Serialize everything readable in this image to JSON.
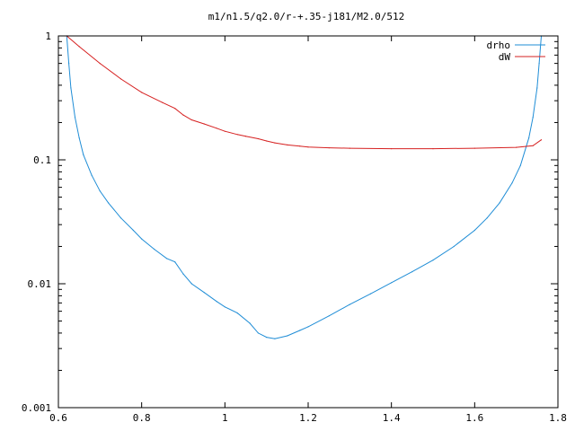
{
  "chart_data": {
    "type": "line",
    "title": "m1/n1.5/q2.0/r-+.35-j181/M2.0/512",
    "xlabel": "",
    "ylabel": "",
    "xlim": [
      0.6,
      1.8
    ],
    "ylim": [
      0.001,
      1
    ],
    "yscale": "log",
    "grid": false,
    "legend_position": "top-right",
    "x_ticks": [
      0.6,
      0.8,
      1.0,
      1.2,
      1.4,
      1.6,
      1.8
    ],
    "x_tick_labels": [
      "0.6",
      "0.8",
      "1",
      "1.2",
      "1.4",
      "1.6",
      "1.8"
    ],
    "y_ticks": [
      0.001,
      0.01,
      0.1,
      1
    ],
    "y_tick_labels": [
      "0.001",
      "0.01",
      "0.1",
      "1"
    ],
    "series": [
      {
        "name": "drho",
        "color": "#1f8dd6",
        "x": [
          0.62,
          0.625,
          0.63,
          0.64,
          0.65,
          0.66,
          0.68,
          0.7,
          0.72,
          0.75,
          0.78,
          0.8,
          0.83,
          0.86,
          0.88,
          0.9,
          0.92,
          0.95,
          0.98,
          1.0,
          1.03,
          1.06,
          1.08,
          1.1,
          1.12,
          1.15,
          1.18,
          1.2,
          1.25,
          1.3,
          1.35,
          1.4,
          1.45,
          1.5,
          1.55,
          1.6,
          1.63,
          1.66,
          1.69,
          1.71,
          1.73,
          1.74,
          1.75,
          1.755,
          1.76
        ],
        "values": [
          1.0,
          0.6,
          0.38,
          0.22,
          0.15,
          0.11,
          0.075,
          0.056,
          0.045,
          0.034,
          0.027,
          0.023,
          0.019,
          0.016,
          0.015,
          0.012,
          0.01,
          0.0085,
          0.0072,
          0.0065,
          0.0058,
          0.0048,
          0.004,
          0.0037,
          0.0036,
          0.0038,
          0.0042,
          0.0045,
          0.0055,
          0.0068,
          0.0083,
          0.0102,
          0.0125,
          0.0155,
          0.02,
          0.027,
          0.034,
          0.045,
          0.065,
          0.09,
          0.15,
          0.22,
          0.38,
          0.6,
          1.0
        ]
      },
      {
        "name": "dW",
        "color": "#d62020",
        "x": [
          0.62,
          0.65,
          0.7,
          0.75,
          0.8,
          0.85,
          0.88,
          0.9,
          0.92,
          0.95,
          0.98,
          1.0,
          1.03,
          1.05,
          1.08,
          1.1,
          1.12,
          1.15,
          1.18,
          1.2,
          1.25,
          1.3,
          1.4,
          1.5,
          1.6,
          1.7,
          1.74,
          1.76
        ],
        "values": [
          1.0,
          0.82,
          0.6,
          0.45,
          0.35,
          0.29,
          0.26,
          0.23,
          0.21,
          0.195,
          0.18,
          0.17,
          0.16,
          0.155,
          0.148,
          0.142,
          0.137,
          0.132,
          0.129,
          0.127,
          0.125,
          0.124,
          0.123,
          0.123,
          0.124,
          0.126,
          0.13,
          0.145
        ]
      }
    ]
  }
}
